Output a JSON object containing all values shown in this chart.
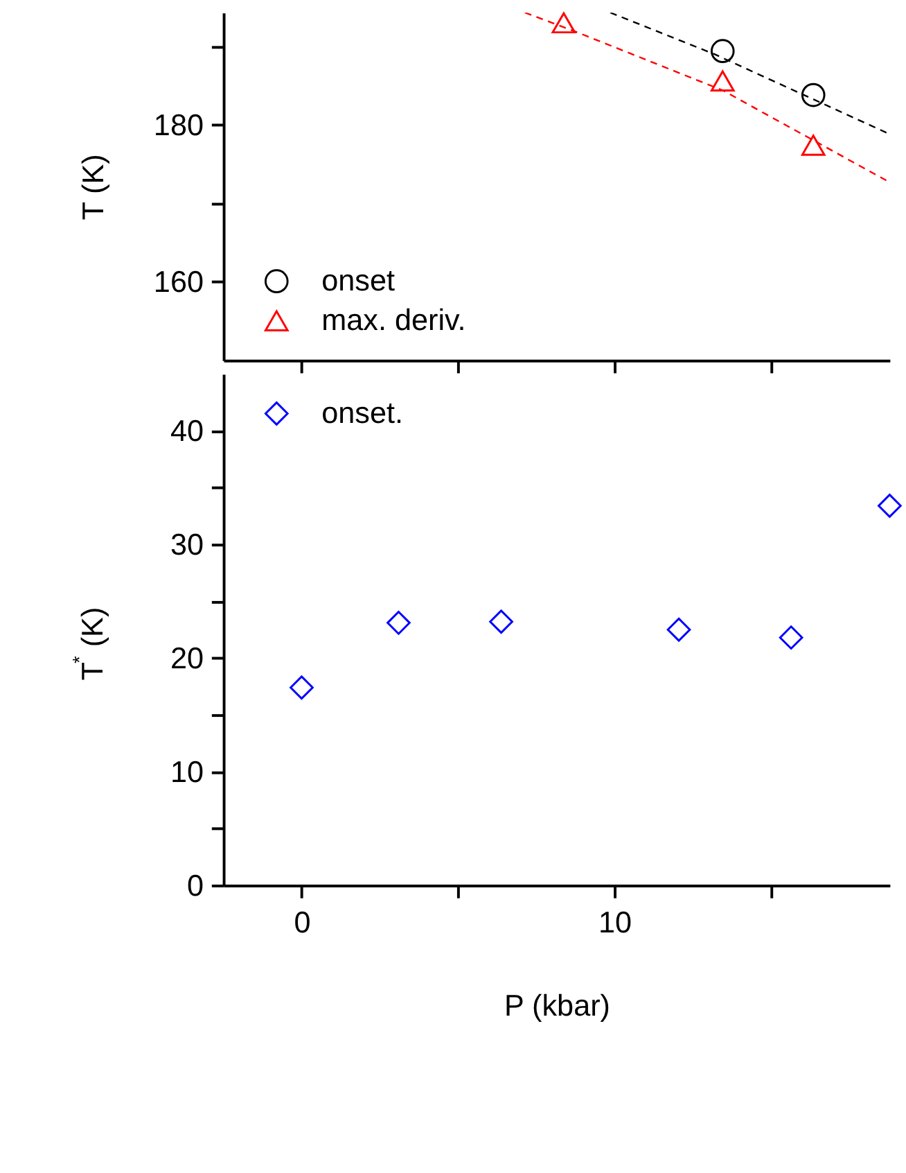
{
  "chart_data": [
    {
      "type": "scatter",
      "ylabel": "T (K)",
      "xlim": [
        -2.5,
        18.8
      ],
      "xticks": [
        0,
        5,
        10,
        15
      ],
      "tick_labels": "y",
      "ylim": [
        150,
        194.3
      ],
      "yticks": [
        160,
        {
          "value": 170,
          "label": null
        },
        180,
        {
          "value": 190,
          "label": null
        }
      ],
      "grid": false,
      "legend": "bottom left",
      "series": [
        {
          "name": "onset",
          "color": "#000000",
          "marker": "circle",
          "x": [
            13.46,
            16.36
          ],
          "values": [
            189.4,
            183.8
          ]
        },
        {
          "name": "max. deriv.",
          "color": "#ff0000",
          "marker": "triangle",
          "x": [
            8.38,
            13.46,
            16.36
          ],
          "values": [
            193.0,
            185.6,
            177.4
          ]
        },
        {
          "type": "line",
          "color": "#000000",
          "line_style": "dashed",
          "x": [
            9.87,
            13.2,
            18.7
          ],
          "values": [
            194.3,
            189.0,
            179.0
          ]
        },
        {
          "type": "line",
          "color": "#ff0000",
          "line_style": "dashed",
          "x": [
            7.14,
            8.87,
            13.46,
            18.7
          ],
          "values": [
            194.3,
            191.7,
            184.4,
            172.9
          ]
        }
      ]
    },
    {
      "type": "scatter",
      "xlabel": "P (kbar)",
      "ylabel": "T$^{*}$ (K)",
      "xlim": [
        -2.5,
        18.8
      ],
      "xticks": [
        0,
        {
          "value": 5,
          "label": null
        },
        10,
        {
          "value": 15,
          "label": null
        }
      ],
      "ylim": [
        0,
        45
      ],
      "yticks": [
        0,
        {
          "value": 5,
          "label": null
        },
        10,
        {
          "value": 15,
          "label": null
        },
        20,
        {
          "value": 25,
          "label": null
        },
        30,
        {
          "value": 35,
          "label": null
        },
        40
      ],
      "grid": false,
      "legend": "top left",
      "series": [
        {
          "name": "onset.",
          "color": "#0000ff",
          "marker": "diamond",
          "x": [
            0,
            3.1,
            6.38,
            12.06,
            15.65,
            18.8
          ],
          "values": [
            17.4,
            23.1,
            23.2,
            22.5,
            21.8,
            33.4
          ]
        }
      ]
    }
  ]
}
